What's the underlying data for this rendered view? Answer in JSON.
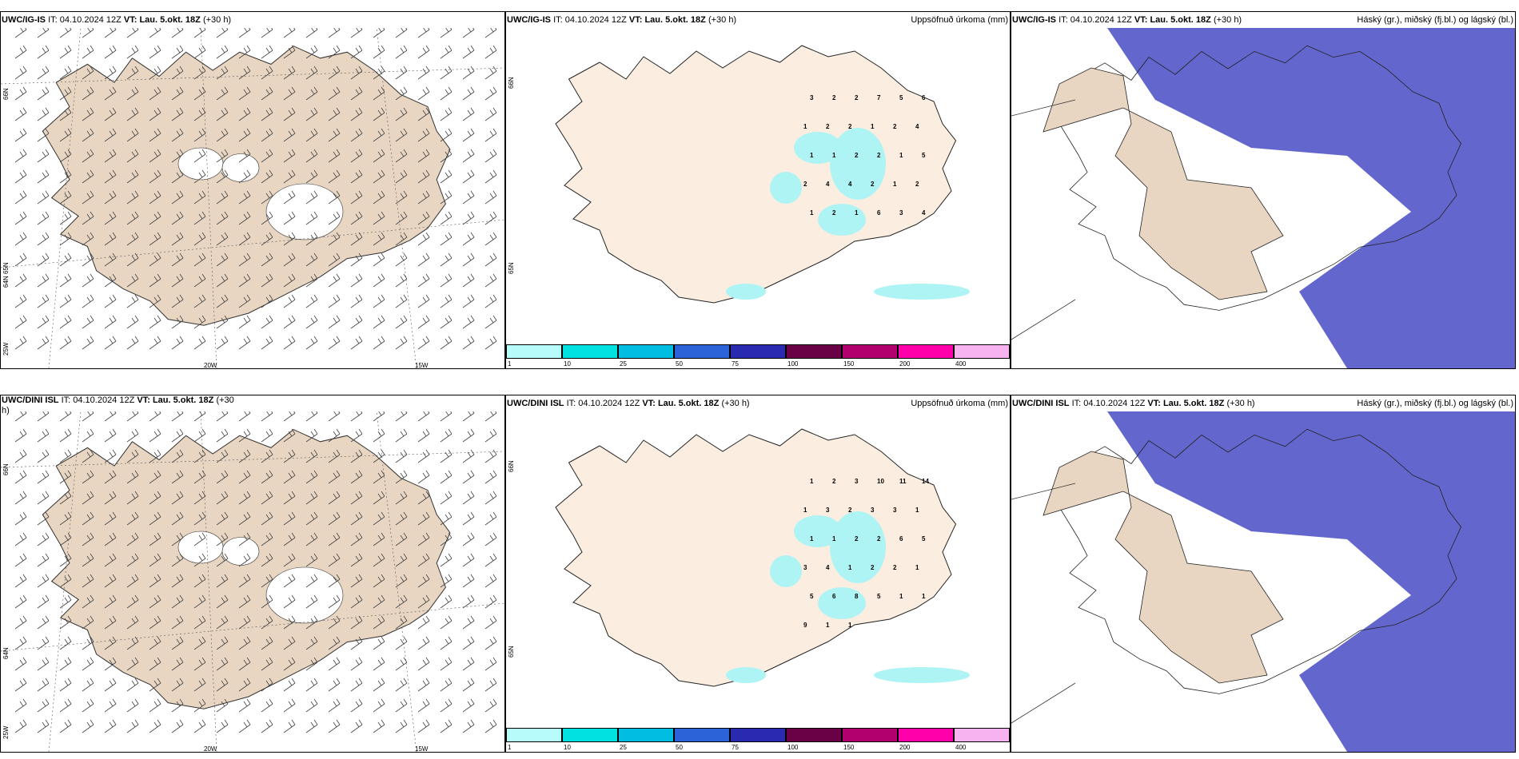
{
  "colors": {
    "land": "#e8d6c2",
    "land_light": "#fbeee0",
    "cloud_high": "#6366cc",
    "precip_cyan": "#aef4f4",
    "sea": "#ffffff"
  },
  "rows": [
    {
      "model": "UWC/IG-IS",
      "wind": {
        "it_label": "IT:",
        "it": "04.10.2024 12Z",
        "vt_label": "VT:",
        "vt": "Lau. 5.okt. 18Z",
        "lead": "(+30 h)"
      },
      "precip": {
        "it_label": "IT:",
        "it": "04.10.2024 12Z",
        "vt_label": "VT:",
        "vt": "Lau. 5.okt. 18Z",
        "lead": "(+30 h)",
        "title": "Uppsöfnuð úrkoma (mm)",
        "labels": [
          "3",
          "2",
          "2",
          "7",
          "5",
          "6",
          "1",
          "2",
          "2",
          "1",
          "2",
          "4",
          "1",
          "1",
          "2",
          "2",
          "1",
          "5",
          "2",
          "4",
          "4",
          "2",
          "1",
          "2",
          "1",
          "2",
          "1",
          "6",
          "3",
          "4"
        ]
      },
      "cloud": {
        "it_label": "IT:",
        "it": "04.10.2024 12Z",
        "vt_label": "VT:",
        "vt": "Lau. 5.okt. 18Z",
        "lead": "(+30 h)",
        "title": "Háský (gr.), miðský (fj.bl.) og lágský (bl.)"
      }
    },
    {
      "model": "UWC/DINI ISL",
      "wind": {
        "it_label": "IT:",
        "it": "04.10.2024 12Z",
        "vt_label": "VT:",
        "vt": "Lau. 5.okt. 18Z",
        "lead": "(+30",
        "lead_cont": "h)"
      },
      "precip": {
        "it_label": "IT:",
        "it": "04.10.2024 12Z",
        "vt_label": "VT:",
        "vt": "Lau. 5.okt. 18Z",
        "lead": "(+30 h)",
        "title": "Uppsöfnuð úrkoma (mm)",
        "labels": [
          "1",
          "2",
          "3",
          "10",
          "11",
          "14",
          "1",
          "3",
          "2",
          "3",
          "3",
          "1",
          "1",
          "1",
          "2",
          "2",
          "6",
          "5",
          "3",
          "4",
          "1",
          "2",
          "2",
          "1",
          "5",
          "6",
          "8",
          "5",
          "1",
          "1",
          "9",
          "1",
          "1"
        ]
      },
      "cloud": {
        "it_label": "IT:",
        "it": "04.10.2024 12Z",
        "vt_label": "VT:",
        "vt": "Lau. 5.okt. 18Z",
        "lead": "(+30 h)",
        "title": "Háský (gr.), miðský (fj.bl.) og lágský (bl.)"
      }
    }
  ],
  "axis": {
    "lat66": "66N",
    "lat64": "64N",
    "lon25": "25W",
    "lon20": "20W",
    "lon15": "15W",
    "lat65": "65N"
  },
  "colorbar": {
    "ticks": [
      "1",
      "10",
      "25",
      "50",
      "75",
      "100",
      "150",
      "200",
      "400"
    ],
    "colors": [
      "#b7fbfb",
      "#00e1e1",
      "#00bde1",
      "#2c63d9",
      "#2a2ab0",
      "#6a0046",
      "#b3006f",
      "#ff00aa",
      "#f7b3f0"
    ]
  }
}
